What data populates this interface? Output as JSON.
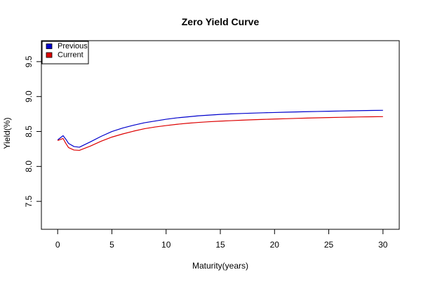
{
  "chart_data": {
    "type": "line",
    "title": "Zero Yield Curve",
    "xlabel": "Maturity(years)",
    "ylabel": "Yield(%)",
    "xlim": [
      -1.5,
      31.5
    ],
    "ylim": [
      7.1,
      9.8
    ],
    "x_ticks": [
      0,
      5,
      10,
      15,
      20,
      25,
      30
    ],
    "y_ticks": [
      7.5,
      8.0,
      8.5,
      9.0,
      9.5
    ],
    "x_tick_labels": [
      "0",
      "5",
      "10",
      "15",
      "20",
      "25",
      "30"
    ],
    "y_tick_labels": [
      "7.5",
      "8.0",
      "8.5",
      "9.0",
      "9.5"
    ],
    "grid": false,
    "legend_position": "top-left",
    "series": [
      {
        "name": "Previous",
        "color": "#0000cc",
        "points": [
          [
            0,
            8.38
          ],
          [
            0.25,
            8.41
          ],
          [
            0.5,
            8.44
          ],
          [
            0.75,
            8.39
          ],
          [
            1,
            8.33
          ],
          [
            1.5,
            8.285
          ],
          [
            2,
            8.275
          ],
          [
            3,
            8.35
          ],
          [
            4,
            8.43
          ],
          [
            5,
            8.5
          ],
          [
            6,
            8.55
          ],
          [
            7,
            8.59
          ],
          [
            8,
            8.625
          ],
          [
            9,
            8.65
          ],
          [
            10,
            8.675
          ],
          [
            11,
            8.695
          ],
          [
            12,
            8.71
          ],
          [
            13,
            8.725
          ],
          [
            14,
            8.735
          ],
          [
            15,
            8.745
          ],
          [
            16,
            8.752
          ],
          [
            17,
            8.758
          ],
          [
            18,
            8.763
          ],
          [
            19,
            8.768
          ],
          [
            20,
            8.772
          ],
          [
            21,
            8.776
          ],
          [
            22,
            8.78
          ],
          [
            23,
            8.784
          ],
          [
            24,
            8.787
          ],
          [
            25,
            8.79
          ],
          [
            26,
            8.793
          ],
          [
            27,
            8.796
          ],
          [
            28,
            8.799
          ],
          [
            29,
            8.801
          ],
          [
            30,
            8.803
          ]
        ]
      },
      {
        "name": "Current",
        "color": "#dd0000",
        "points": [
          [
            0,
            8.37
          ],
          [
            0.25,
            8.385
          ],
          [
            0.5,
            8.4
          ],
          [
            0.75,
            8.33
          ],
          [
            1,
            8.27
          ],
          [
            1.5,
            8.235
          ],
          [
            2,
            8.23
          ],
          [
            3,
            8.29
          ],
          [
            4,
            8.36
          ],
          [
            5,
            8.42
          ],
          [
            6,
            8.465
          ],
          [
            7,
            8.505
          ],
          [
            8,
            8.54
          ],
          [
            9,
            8.565
          ],
          [
            10,
            8.585
          ],
          [
            11,
            8.603
          ],
          [
            12,
            8.618
          ],
          [
            13,
            8.63
          ],
          [
            14,
            8.64
          ],
          [
            15,
            8.648
          ],
          [
            16,
            8.655
          ],
          [
            17,
            8.662
          ],
          [
            18,
            8.668
          ],
          [
            19,
            8.673
          ],
          [
            20,
            8.678
          ],
          [
            21,
            8.683
          ],
          [
            22,
            8.688
          ],
          [
            23,
            8.692
          ],
          [
            24,
            8.696
          ],
          [
            25,
            8.7
          ],
          [
            26,
            8.703
          ],
          [
            27,
            8.706
          ],
          [
            28,
            8.709
          ],
          [
            29,
            8.711
          ],
          [
            30,
            8.713
          ]
        ]
      }
    ]
  }
}
